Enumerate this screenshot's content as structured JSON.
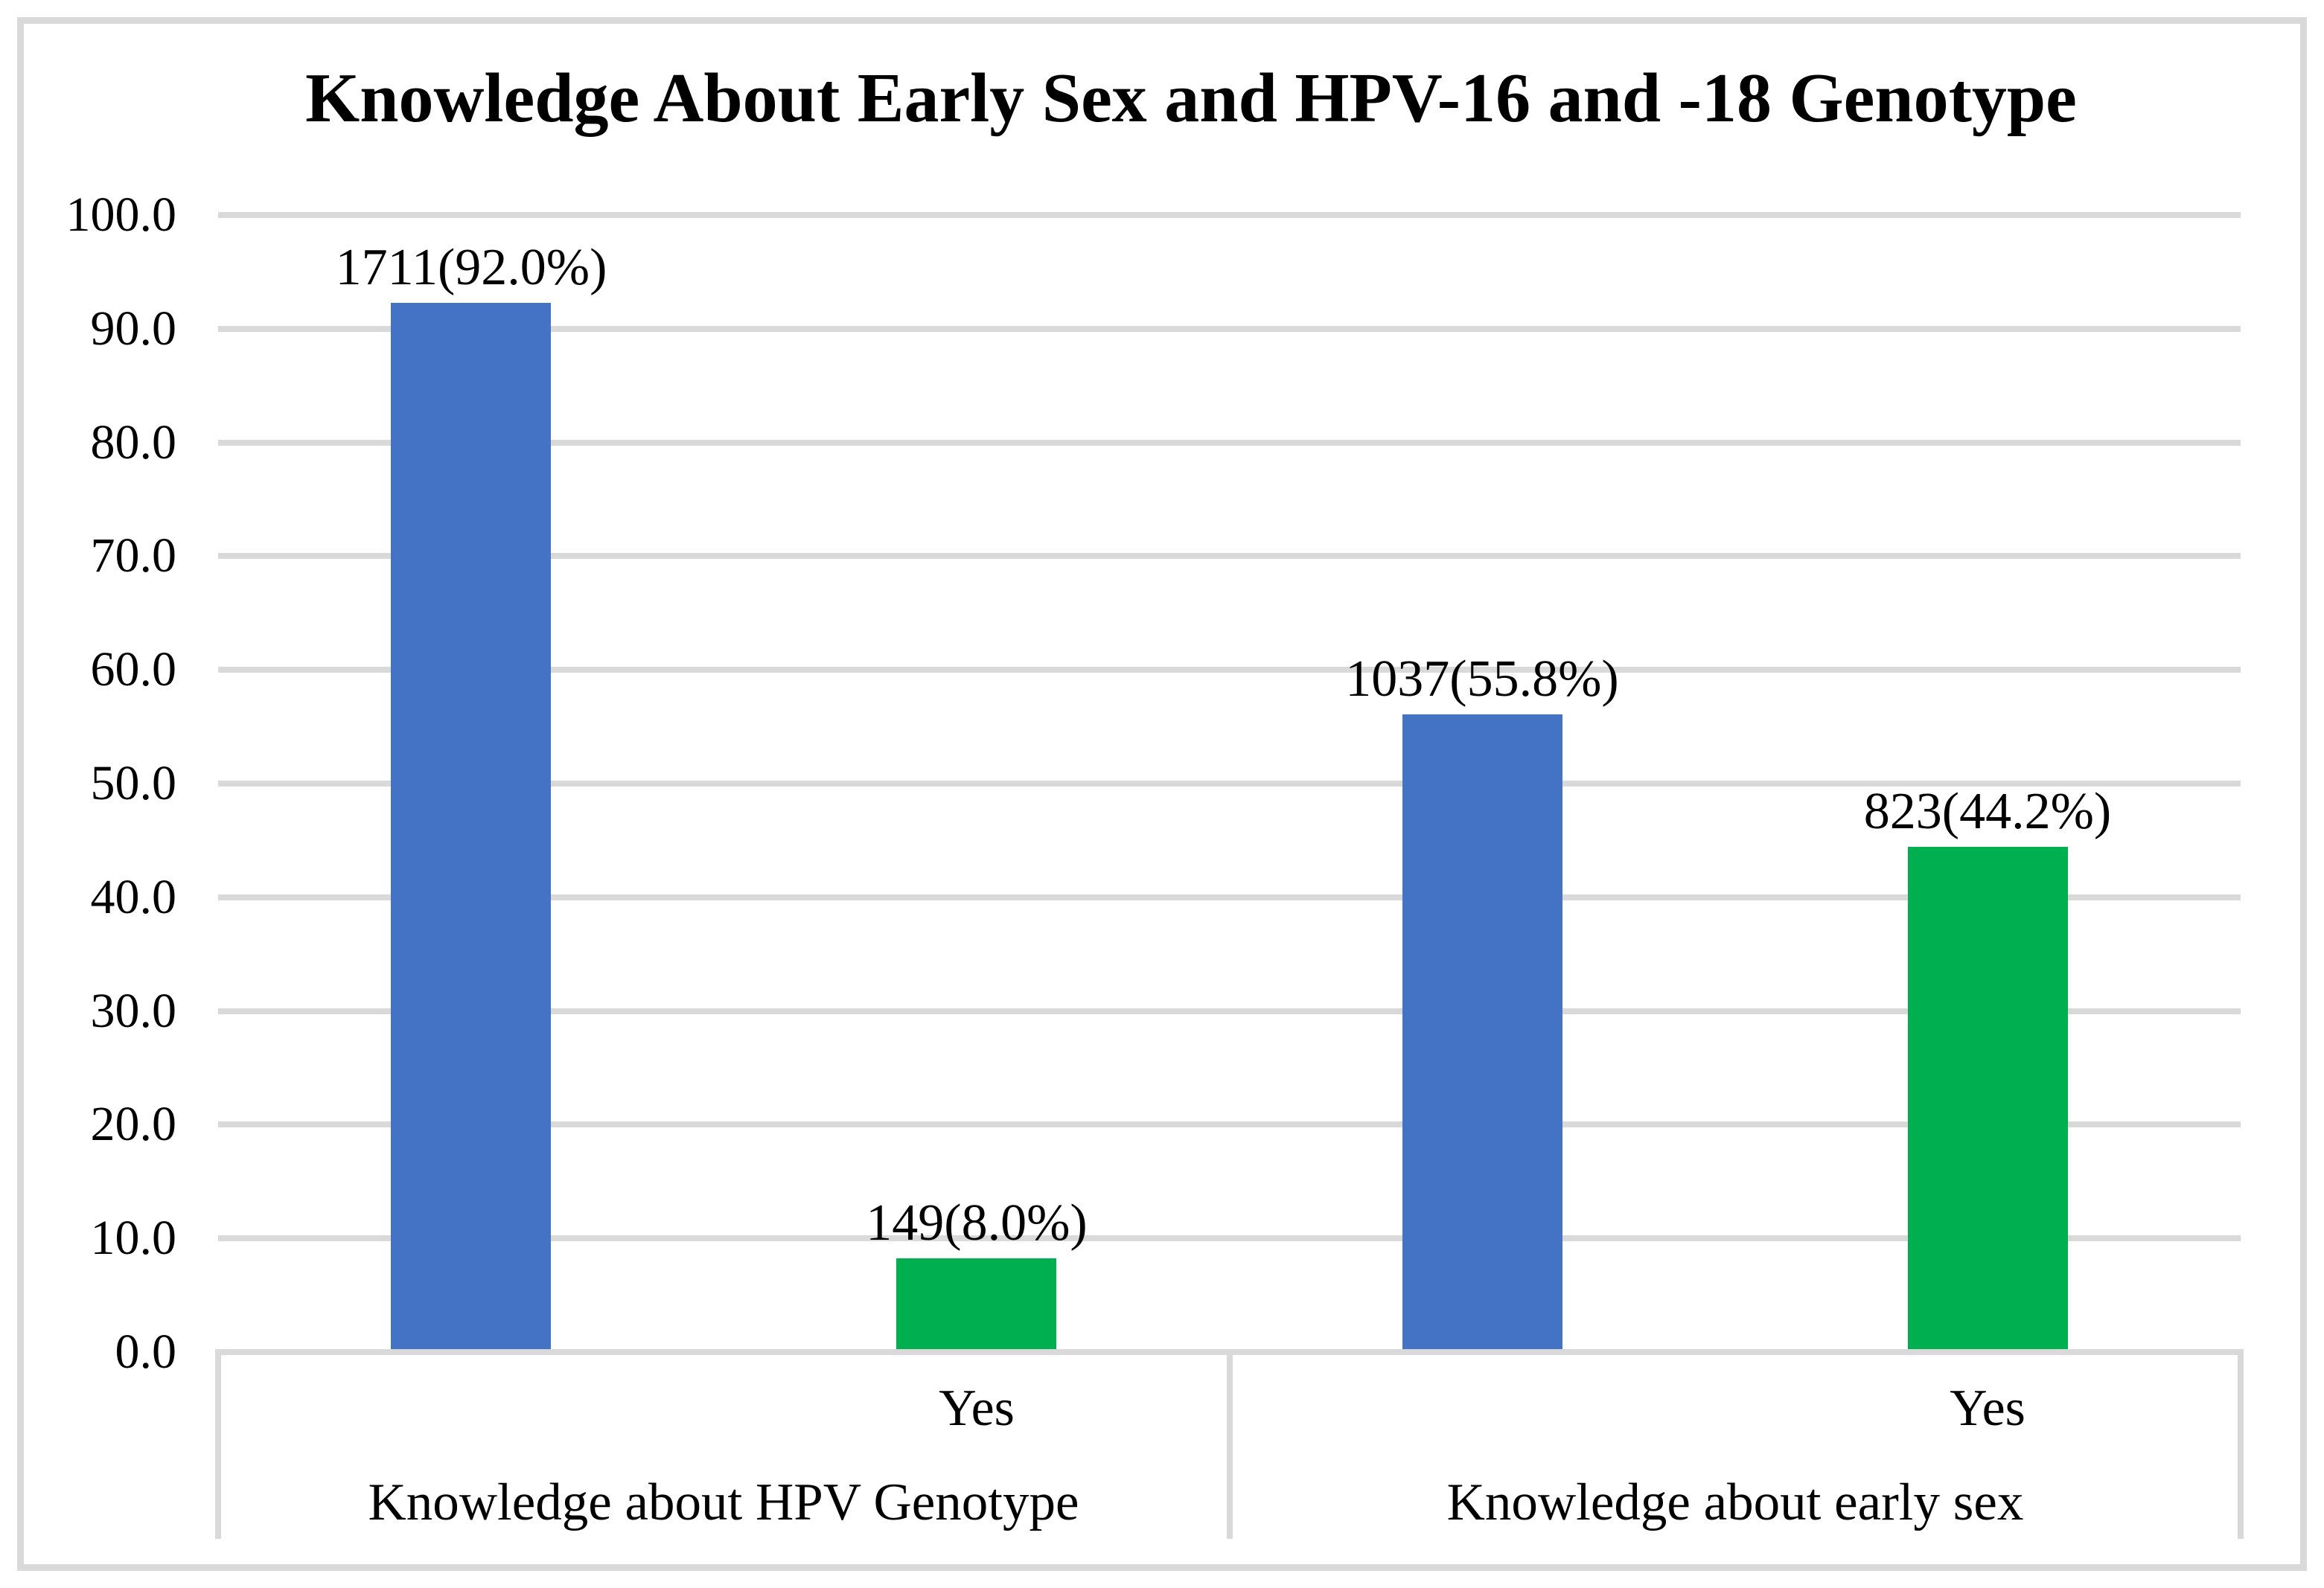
{
  "chart_data": {
    "type": "bar",
    "title": "Knowledge About Early Sex and HPV-16 and -18 Genotype",
    "y_axis": {
      "min": 0,
      "max": 100,
      "step": 10,
      "tick_decimals": 1,
      "tick_labels": [
        "0.0",
        "10.0",
        "20.0",
        "30.0",
        "40.0",
        "50.0",
        "60.0",
        "70.0",
        "80.0",
        "90.0",
        "100.0"
      ]
    },
    "grid": true,
    "legend_position": "none",
    "groups": [
      {
        "label": "Knowledge about HPV Genotype",
        "bars": [
          {
            "category": "",
            "count": 1711,
            "pct": 92.0,
            "data_label": "1711(92.0%)",
            "color_key": "blue"
          },
          {
            "category": "Yes",
            "count": 149,
            "pct": 8.0,
            "data_label": "149(8.0%)",
            "color_key": "green"
          }
        ]
      },
      {
        "label": "Knowledge about early sex",
        "bars": [
          {
            "category": "",
            "count": 1037,
            "pct": 55.8,
            "data_label": "1037(55.8%)",
            "color_key": "blue"
          },
          {
            "category": "Yes",
            "count": 823,
            "pct": 44.2,
            "data_label": "823(44.2%)",
            "color_key": "green"
          }
        ]
      }
    ],
    "colors": {
      "blue": "#4472C4",
      "green": "#00B050",
      "gridline": "#D9D9D9",
      "chart_border": "#D9D9D9",
      "text": "#000000"
    }
  }
}
